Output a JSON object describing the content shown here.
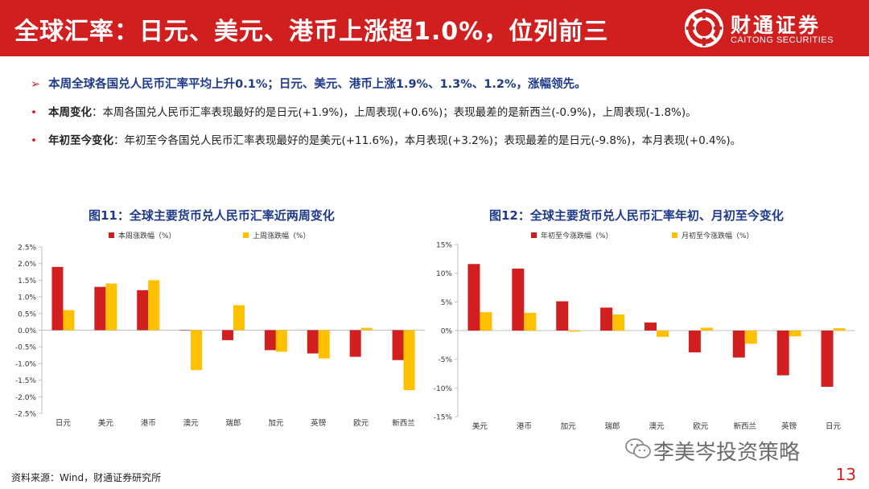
{
  "header": {
    "title": "全球汇率：日元、美元、港币上涨超1.0%，位列前三",
    "logo_cn": "财通证券",
    "logo_en": "CAITONG SECURITIES"
  },
  "headline": {
    "arrow": "➢",
    "text": "本周全球各国兑人民币汇率平均上升0.1%；日元、美元、港币上涨1.9%、1.3%、1.2%，涨幅领先。"
  },
  "bullets": [
    {
      "dot": "•",
      "label": "本周变化",
      "text": "：本周各国兑人民币汇率表现最好的是日元(+1.9%)，上周表现(+0.6%)；表现最差的是新西兰(-0.9%)，上周表现(-1.8%)。"
    },
    {
      "dot": "•",
      "label": "年初至今变化",
      "text": "：年初至今各国兑人民币汇率表现最好的是美元(+11.6%)，本月表现(+3.2%)；表现最差的是日元(-9.8%)，本月表现(+0.4%)。"
    }
  ],
  "colors": {
    "primary": "#d11f1f",
    "secondary": "#ffc000",
    "accent": "#1e3a8a"
  },
  "chart_data": [
    {
      "type": "bar",
      "title": "图11：全球主要货币兑人民币汇率近两周变化",
      "categories": [
        "日元",
        "美元",
        "港币",
        "澳元",
        "瑞郎",
        "加元",
        "英镑",
        "欧元",
        "新西兰"
      ],
      "series": [
        {
          "name": "本周涨跌幅（%）",
          "values": [
            1.9,
            1.3,
            1.2,
            0.0,
            -0.3,
            -0.6,
            -0.7,
            -0.8,
            -0.9
          ]
        },
        {
          "name": "上周涨跌幅（%）",
          "values": [
            0.6,
            1.4,
            1.5,
            -1.2,
            0.75,
            -0.65,
            -0.85,
            0.07,
            -1.8
          ]
        }
      ],
      "ylim": [
        -2.5,
        2.5
      ],
      "yticks": [
        2.5,
        2.0,
        1.5,
        1.0,
        0.5,
        0.0,
        -0.5,
        -1.0,
        -1.5,
        -2.0,
        -2.5
      ],
      "ytick_labels": [
        "2.5%",
        "2.0%",
        "1.5%",
        "1.0%",
        "0.5%",
        "0.0%",
        "-0.5%",
        "-1.0%",
        "-1.5%",
        "-2.0%",
        "-2.5%"
      ],
      "legend": "top",
      "grid": false
    },
    {
      "type": "bar",
      "title": "图12：全球主要货币兑人民币汇率年初、月初至今变化",
      "categories": [
        "美元",
        "港币",
        "加元",
        "瑞郎",
        "澳元",
        "欧元",
        "新西兰",
        "英镑",
        "日元"
      ],
      "series": [
        {
          "name": "年初至今涨跌幅（%）",
          "values": [
            11.6,
            10.8,
            5.1,
            4.0,
            1.4,
            -3.8,
            -4.7,
            -7.8,
            -9.8
          ]
        },
        {
          "name": "月初至今涨跌幅（%）",
          "values": [
            3.2,
            3.1,
            -0.2,
            2.8,
            -1.1,
            0.5,
            -2.3,
            -1.0,
            0.4
          ]
        }
      ],
      "ylim": [
        -15,
        15
      ],
      "yticks": [
        15,
        10,
        5,
        0,
        -5,
        -10,
        -15
      ],
      "ytick_labels": [
        "15%",
        "10%",
        "5%",
        "0%",
        "-5%",
        "-10%",
        "-15%"
      ],
      "legend": "top",
      "grid": false
    }
  ],
  "source": "资料来源：Wind，财通证券研究所",
  "watermark": "李美岑投资策略",
  "page_number": "13"
}
